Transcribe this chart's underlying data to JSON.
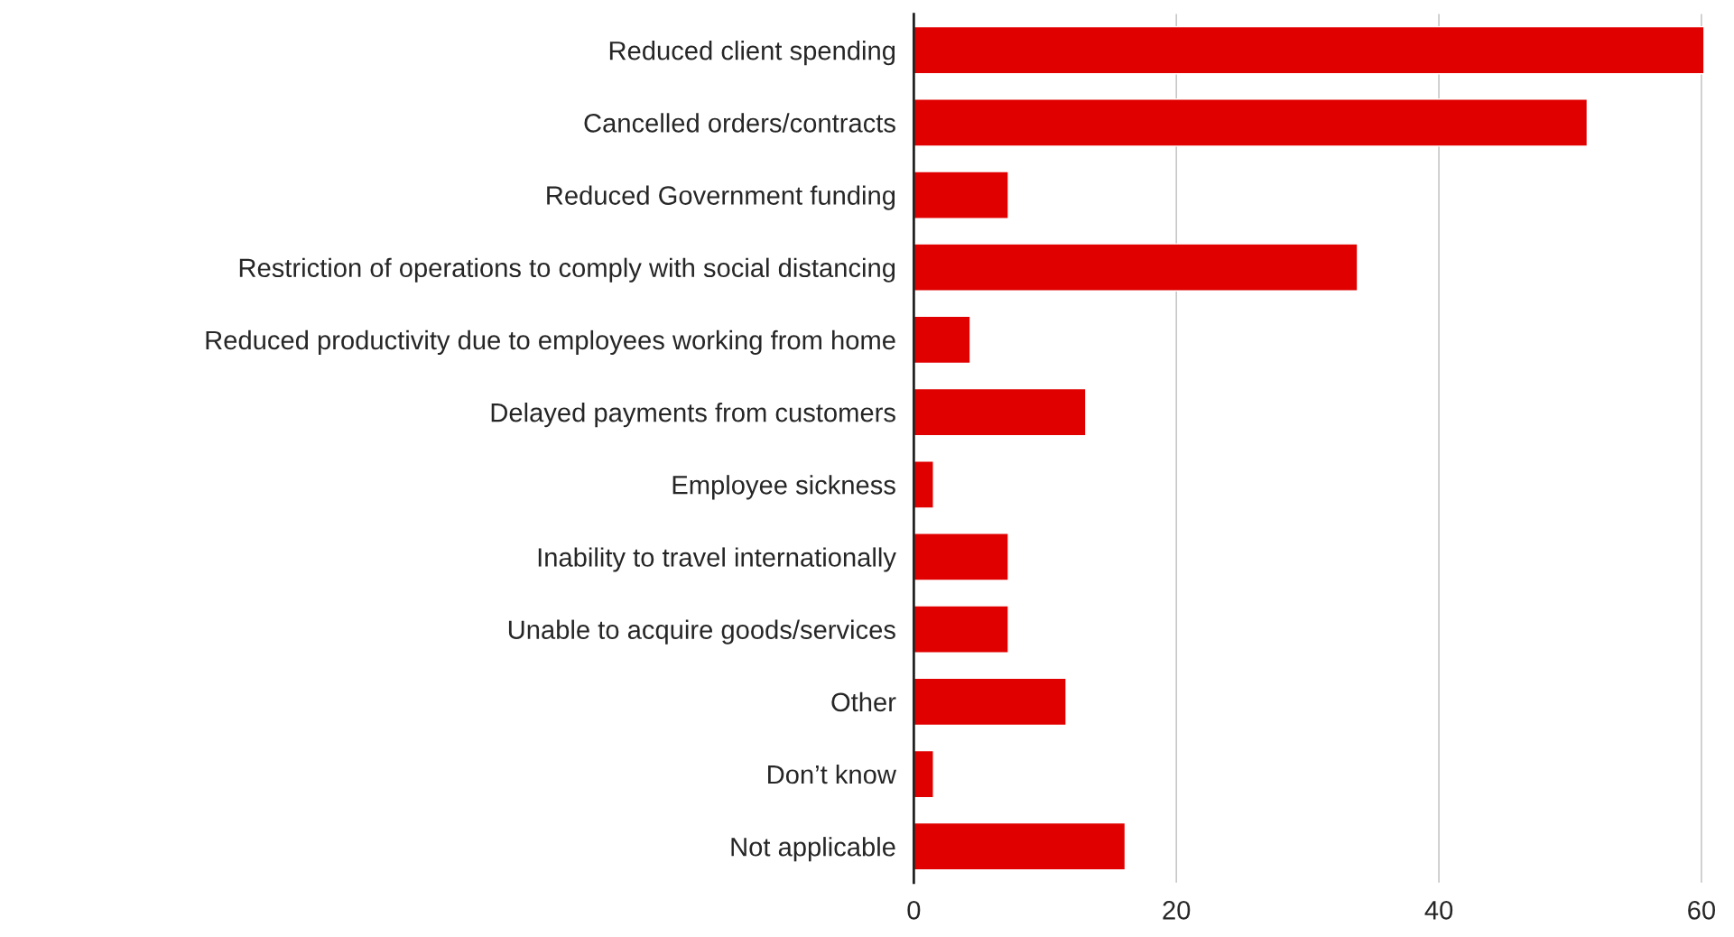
{
  "chart_data": {
    "type": "bar",
    "orientation": "horizontal",
    "categories": [
      "Reduced client spending",
      "Cancelled orders/contracts",
      "Reduced Government funding",
      "Restriction of operations to comply with social distancing",
      "Reduced productivity due to employees working from home",
      "Delayed payments from customers",
      "Employee sickness",
      "Inability to travel internationally",
      "Unable to acquire goods/services",
      "Other",
      "Don’t know",
      "Not applicable"
    ],
    "values": [
      60.2,
      51.3,
      7.2,
      33.8,
      4.3,
      13.1,
      1.5,
      7.2,
      7.2,
      11.6,
      1.5,
      16.1
    ],
    "color": "#e00000",
    "xlim": [
      0,
      60.5
    ],
    "xticks": [
      0,
      20,
      40,
      60
    ],
    "grid": "x"
  }
}
